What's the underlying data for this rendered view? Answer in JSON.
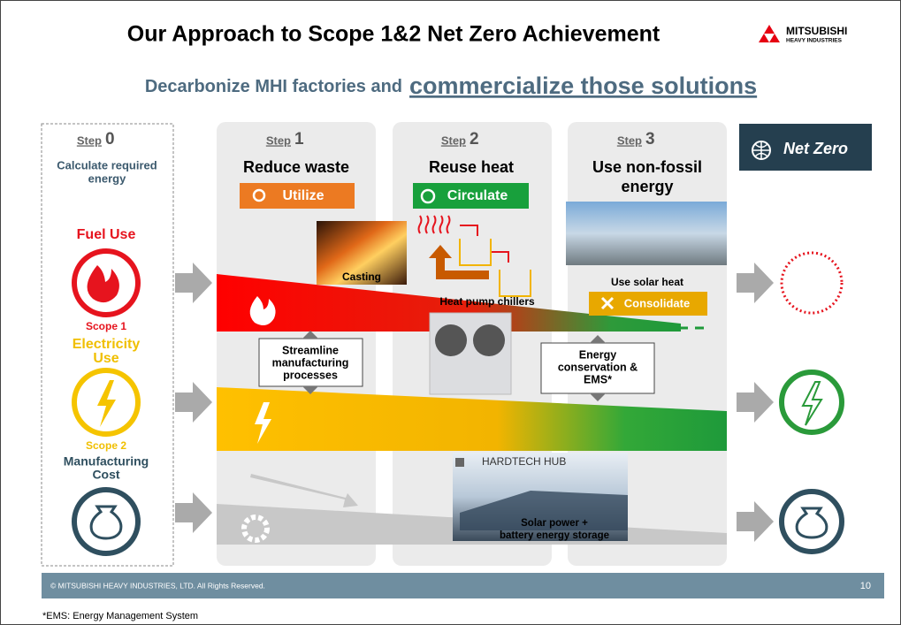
{
  "header": {
    "title": "Our Approach to Scope 1&2 Net Zero Achievement",
    "logo": {
      "name": "MITSUBISHI",
      "sub": "HEAVY INDUSTRIES"
    }
  },
  "subtitle": {
    "lead": "Decarbonize MHI factories and",
    "emphasis": "commercialize those solutions"
  },
  "steps": [
    {
      "label": "Step",
      "number": "0",
      "title": [
        "Calculate required",
        "energy"
      ]
    },
    {
      "label": "Step",
      "number": "1",
      "title": [
        "Reduce waste"
      ],
      "action": "Utilize"
    },
    {
      "label": "Step",
      "number": "2",
      "title": [
        "Reuse heat"
      ],
      "action": "Circulate"
    },
    {
      "label": "Step",
      "number": "3",
      "title": [
        "Use non-fossil",
        "energy"
      ],
      "action": "Consolidate"
    }
  ],
  "goal": "Net Zero",
  "sources": [
    {
      "name": [
        "Fuel Use"
      ],
      "scope": "Scope 1"
    },
    {
      "name": [
        "Electricity",
        "Use"
      ],
      "scope": "Scope 2"
    },
    {
      "name": [
        "Manufacturing",
        "Cost"
      ]
    }
  ],
  "callouts": {
    "casting": "Casting",
    "chillers": "Heat pump chillers",
    "solar_heat": "Use solar heat",
    "streamline": [
      "Streamline",
      "manufacturing",
      "processes"
    ],
    "ems": [
      "Energy",
      "conservation &",
      "EMS*"
    ],
    "hub": "HARDTECH HUB",
    "solar_power": [
      "Solar power +",
      "battery energy storage"
    ]
  },
  "footer": {
    "copyright": "© MITSUBISHI HEAVY INDUSTRIES, LTD.  All Rights Reserved.",
    "page": "10",
    "footnote": "*EMS: Energy Management System"
  }
}
